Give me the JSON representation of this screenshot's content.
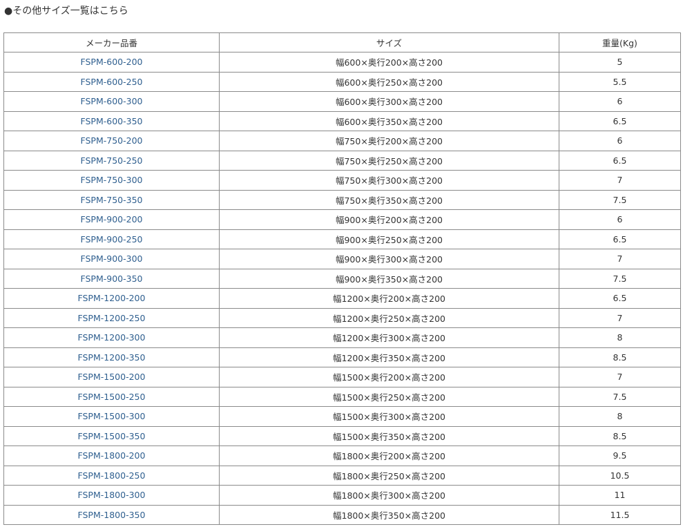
{
  "heading": "●その他サイズ一覧はこちら",
  "table": {
    "headers": [
      "メーカー品番",
      "サイズ",
      "重量(Kg)"
    ],
    "rows": [
      [
        "FSPM-600-200",
        "幅600×奥行200×高さ200",
        "5"
      ],
      [
        "FSPM-600-250",
        "幅600×奥行250×高さ200",
        "5.5"
      ],
      [
        "FSPM-600-300",
        "幅600×奥行300×高さ200",
        "6"
      ],
      [
        "FSPM-600-350",
        "幅600×奥行350×高さ200",
        "6.5"
      ],
      [
        "FSPM-750-200",
        "幅750×奥行200×高さ200",
        "6"
      ],
      [
        "FSPM-750-250",
        "幅750×奥行250×高さ200",
        "6.5"
      ],
      [
        "FSPM-750-300",
        "幅750×奥行300×高さ200",
        "7"
      ],
      [
        "FSPM-750-350",
        "幅750×奥行350×高さ200",
        "7.5"
      ],
      [
        "FSPM-900-200",
        "幅900×奥行200×高さ200",
        "6"
      ],
      [
        "FSPM-900-250",
        "幅900×奥行250×高さ200",
        "6.5"
      ],
      [
        "FSPM-900-300",
        "幅900×奥行300×高さ200",
        "7"
      ],
      [
        "FSPM-900-350",
        "幅900×奥行350×高さ200",
        "7.5"
      ],
      [
        "FSPM-1200-200",
        "幅1200×奥行200×高さ200",
        "6.5"
      ],
      [
        "FSPM-1200-250",
        "幅1200×奥行250×高さ200",
        "7"
      ],
      [
        "FSPM-1200-300",
        "幅1200×奥行300×高さ200",
        "8"
      ],
      [
        "FSPM-1200-350",
        "幅1200×奥行350×高さ200",
        "8.5"
      ],
      [
        "FSPM-1500-200",
        "幅1500×奥行200×高さ200",
        "7"
      ],
      [
        "FSPM-1500-250",
        "幅1500×奥行250×高さ200",
        "7.5"
      ],
      [
        "FSPM-1500-300",
        "幅1500×奥行300×高さ200",
        "8"
      ],
      [
        "FSPM-1500-350",
        "幅1500×奥行350×高さ200",
        "8.5"
      ],
      [
        "FSPM-1800-200",
        "幅1800×奥行200×高さ200",
        "9.5"
      ],
      [
        "FSPM-1800-250",
        "幅1800×奥行250×高さ200",
        "10.5"
      ],
      [
        "FSPM-1800-300",
        "幅1800×奥行300×高さ200",
        "11"
      ],
      [
        "FSPM-1800-350",
        "幅1800×奥行350×高さ200",
        "11.5"
      ]
    ]
  },
  "colors": {
    "link": "#2f5f8f",
    "border": "#8a8a8a"
  }
}
